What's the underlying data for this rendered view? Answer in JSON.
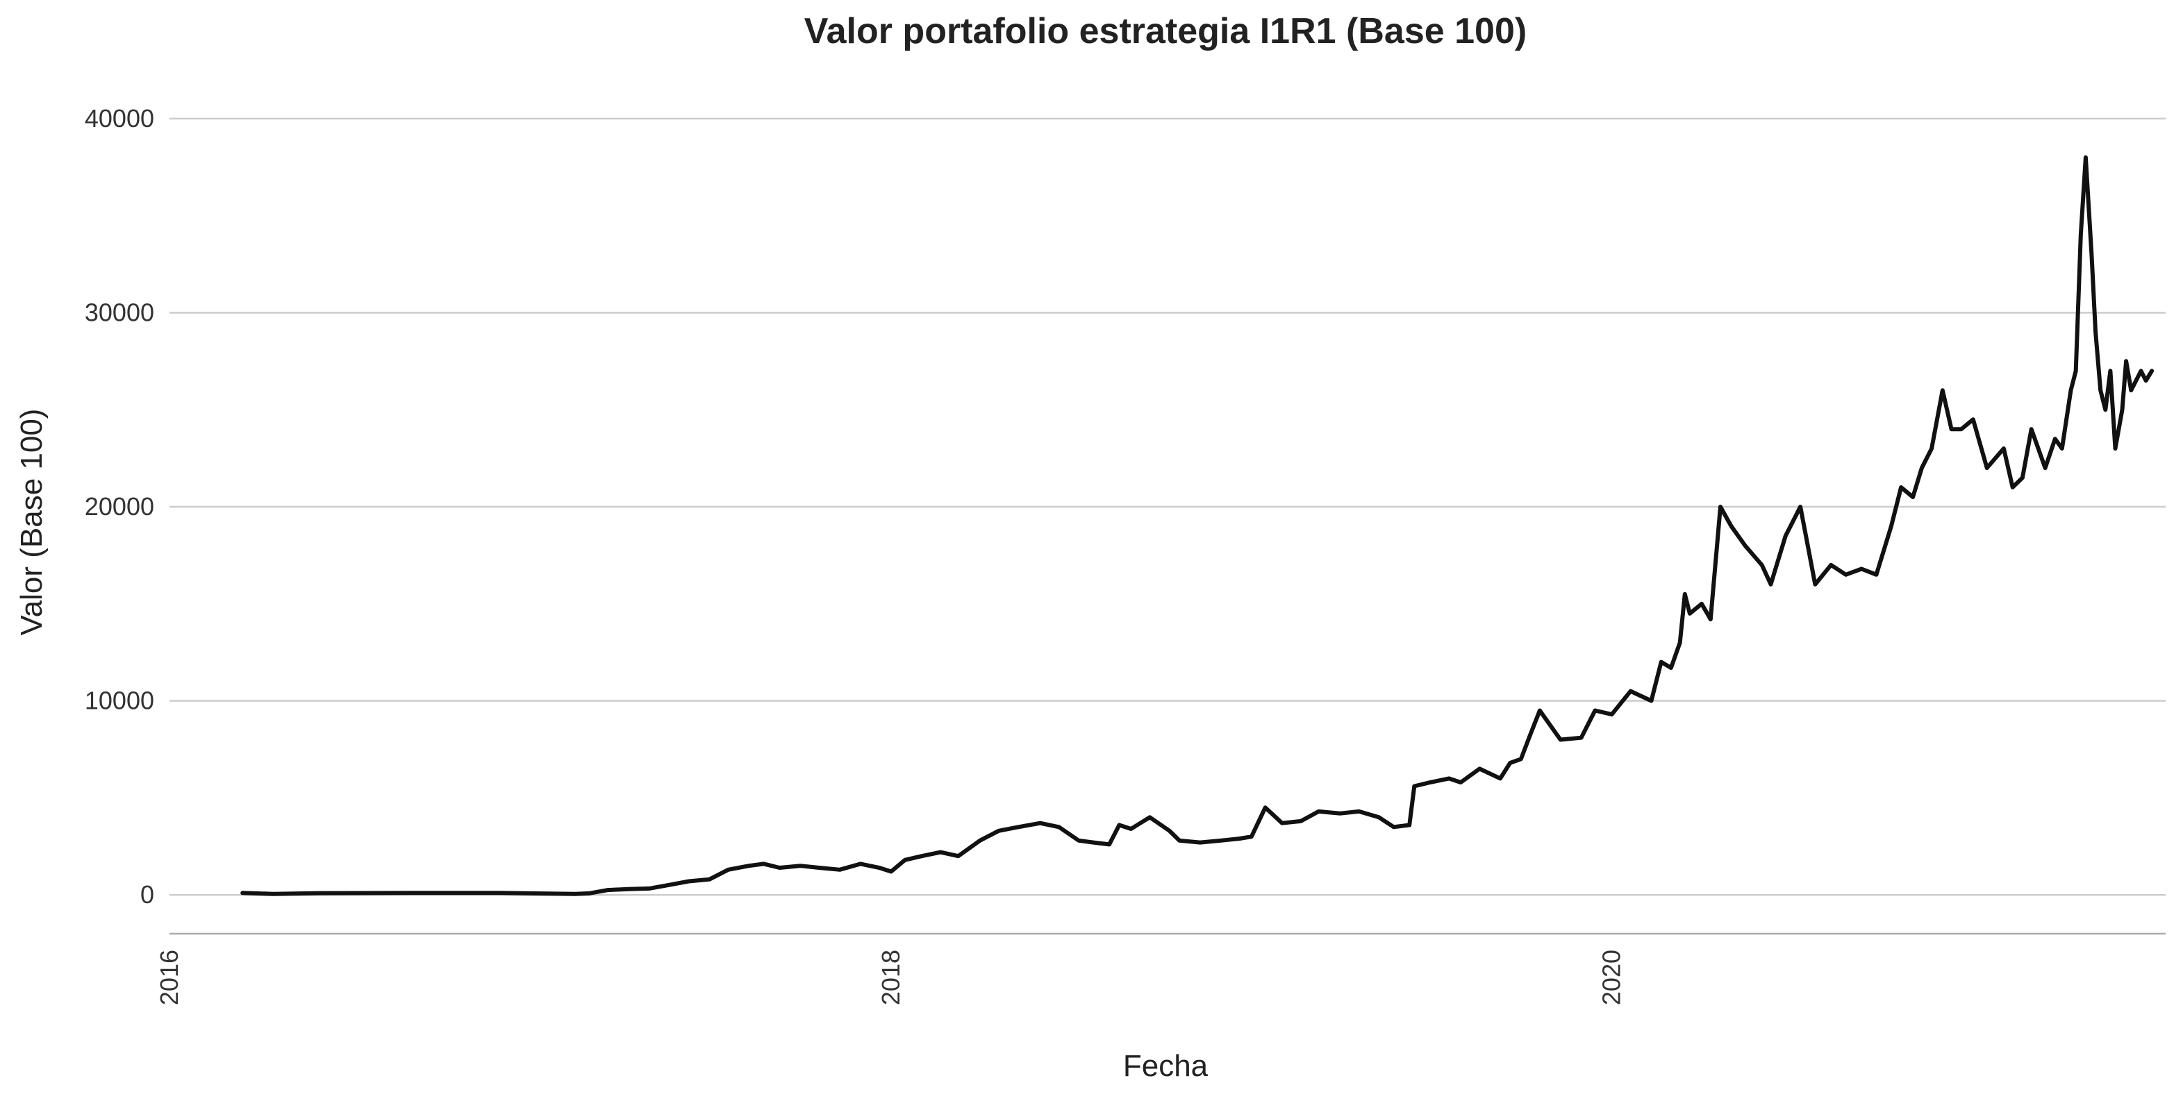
{
  "chart_data": {
    "type": "line",
    "title": "Valor portafolio estrategia I1R1 (Base 100)",
    "xlabel": "Fecha",
    "ylabel": "Valor (Base 100)",
    "xlim": [
      "2016-01-01",
      "2021-07-15"
    ],
    "ylim": [
      -2000,
      42000
    ],
    "xticks": [
      "2016",
      "2018",
      "2020"
    ],
    "yticks": [
      0,
      10000,
      20000,
      30000,
      40000
    ],
    "grid": "horizontal",
    "line_color": "#111111",
    "grid_color": "#cccccc",
    "series": [
      {
        "x": [
          "2016-03-15",
          "2016-04-15",
          "2016-06-01",
          "2016-09-01",
          "2016-12-01",
          "2017-02-15",
          "2017-03-01",
          "2017-03-20",
          "2017-04-10",
          "2017-05-01",
          "2017-05-20",
          "2017-06-10",
          "2017-07-01",
          "2017-07-20",
          "2017-08-10",
          "2017-08-25",
          "2017-09-10",
          "2017-10-01",
          "2017-10-20",
          "2017-11-10",
          "2017-12-01",
          "2017-12-20",
          "2018-01-01",
          "2018-01-15",
          "2018-02-01",
          "2018-02-20",
          "2018-03-10",
          "2018-04-01",
          "2018-04-20",
          "2018-05-10",
          "2018-06-01",
          "2018-06-20",
          "2018-07-10",
          "2018-07-25",
          "2018-08-10",
          "2018-08-20",
          "2018-09-01",
          "2018-09-20",
          "2018-10-10",
          "2018-10-20",
          "2018-11-10",
          "2018-12-01",
          "2018-12-20",
          "2019-01-01",
          "2019-01-15",
          "2019-02-01",
          "2019-02-20",
          "2019-03-10",
          "2019-04-01",
          "2019-04-20",
          "2019-05-10",
          "2019-05-25",
          "2019-06-10",
          "2019-06-15",
          "2019-07-01",
          "2019-07-20",
          "2019-08-01",
          "2019-08-20",
          "2019-09-10",
          "2019-09-20",
          "2019-10-01",
          "2019-10-10",
          "2019-10-20",
          "2019-11-10",
          "2019-12-01",
          "2019-12-15",
          "2020-01-01",
          "2020-01-20",
          "2020-02-10",
          "2020-02-20",
          "2020-03-01",
          "2020-03-10",
          "2020-03-15",
          "2020-03-20",
          "2020-04-01",
          "2020-04-10",
          "2020-04-20",
          "2020-05-01",
          "2020-05-15",
          "2020-06-01",
          "2020-06-10",
          "2020-06-25",
          "2020-07-10",
          "2020-07-25",
          "2020-08-10",
          "2020-08-25",
          "2020-09-10",
          "2020-09-25",
          "2020-10-10",
          "2020-10-20",
          "2020-11-01",
          "2020-11-10",
          "2020-11-20",
          "2020-12-01",
          "2020-12-10",
          "2020-12-20",
          "2021-01-01",
          "2021-01-15",
          "2021-02-01",
          "2021-02-10",
          "2021-02-20",
          "2021-03-01",
          "2021-03-15",
          "2021-03-25",
          "2021-04-01",
          "2021-04-10",
          "2021-04-15",
          "2021-04-20",
          "2021-04-25",
          "2021-05-01",
          "2021-05-05",
          "2021-05-10",
          "2021-05-15",
          "2021-05-20",
          "2021-05-25",
          "2021-06-01",
          "2021-06-05",
          "2021-06-10",
          "2021-06-20",
          "2021-06-25",
          "2021-07-01"
        ],
        "y": [
          100,
          50,
          90,
          100,
          100,
          50,
          80,
          250,
          300,
          330,
          500,
          700,
          800,
          1300,
          1500,
          1600,
          1400,
          1500,
          1400,
          1300,
          1600,
          1400,
          1200,
          1800,
          2000,
          2200,
          2000,
          2800,
          3300,
          3500,
          3700,
          3500,
          2800,
          2700,
          2600,
          3600,
          3400,
          4000,
          3300,
          2800,
          2700,
          2800,
          2900,
          3000,
          4500,
          3700,
          3800,
          4300,
          4200,
          4300,
          4000,
          3500,
          3600,
          5600,
          5800,
          6000,
          5800,
          6500,
          6000,
          6800,
          7000,
          8200,
          9500,
          8000,
          8100,
          9500,
          9300,
          10500,
          10000,
          12000,
          11700,
          13000,
          15500,
          14500,
          15000,
          14200,
          20000,
          19000,
          18000,
          17000,
          16000,
          18500,
          20000,
          16000,
          17000,
          16500,
          16800,
          16500,
          19000,
          21000,
          20500,
          22000,
          23000,
          26000,
          24000,
          24000,
          24500,
          22000,
          23000,
          21000,
          21500,
          24000,
          22000,
          23500,
          23000,
          26000,
          27000,
          34000,
          38000,
          33000,
          29000,
          26000,
          25000,
          27000,
          23000,
          25000,
          27500,
          26000,
          27000,
          26500,
          27000
        ]
      }
    ]
  }
}
